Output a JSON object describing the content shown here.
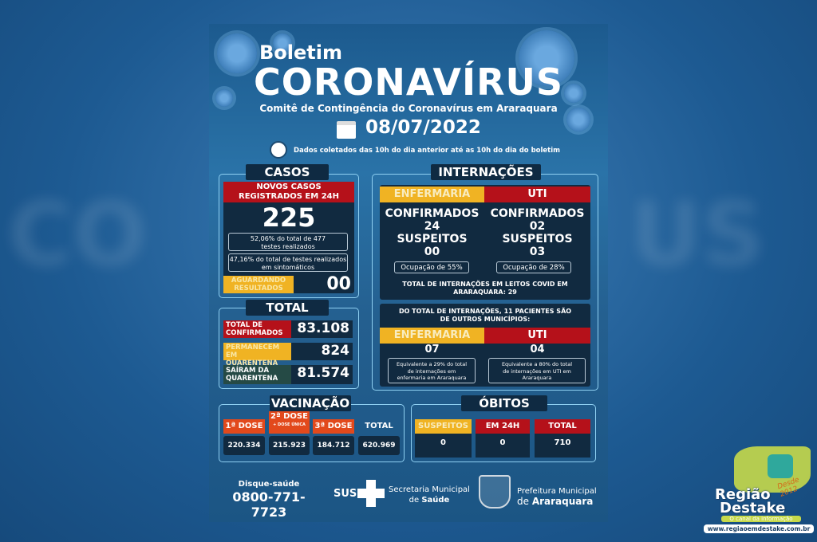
{
  "header": {
    "kicker": "Boletim",
    "title": "CORONAVÍRUS",
    "subtitle": "Comitê de Contingência do Coronavírus em Araraquara",
    "date": "08/07/2022",
    "note": "Dados coletados das 10h do dia anterior até as 10h do dia do boletim"
  },
  "casos": {
    "title": "CASOS",
    "new_label": "NOVOS CASOS REGISTRADOS EM 24H",
    "new_value": "225",
    "pct_tests": "52,06% do total de 477 testes realizados",
    "pct_symptomatic": "47,16% do total de testes realizados em sintomáticos",
    "pending_label": "AGUARDANDO RESULTADOS",
    "pending_value": "00"
  },
  "total": {
    "title": "TOTAL",
    "rows": [
      {
        "label": "TOTAL DE CONFIRMADOS",
        "value": "83.108"
      },
      {
        "label": "PERMANECEM EM QUARENTENA",
        "value": "824"
      },
      {
        "label": "SAÍRAM DA QUARENTENA",
        "value": "81.574"
      }
    ]
  },
  "internacoes": {
    "title": "INTERNAÇÕES",
    "enfermaria": {
      "label": "ENFERMARIA",
      "confirmed_label": "CONFIRMADOS",
      "confirmed": "24",
      "suspected_label": "SUSPEITOS",
      "suspected": "00",
      "occupancy": "Ocupação de 55%"
    },
    "uti": {
      "label": "UTI",
      "confirmed_label": "CONFIRMADOS",
      "confirmed": "02",
      "suspected_label": "SUSPEITOS",
      "suspected": "03",
      "occupancy": "Ocupação de 28%"
    },
    "total_note": "TOTAL DE INTERNAÇÕES EM LEITOS COVID EM ARARAQUARA: 29",
    "other_note": "DO TOTAL DE INTERNAÇÕES, 11 PACIENTES SÃO DE OUTROS MUNICÍPIOS:",
    "other_enfermaria": {
      "label": "ENFERMARIA",
      "value": "07",
      "note": "Equivalente a 29% do total de internações em enfermaria em Araraquara"
    },
    "other_uti": {
      "label": "UTI",
      "value": "04",
      "note": "Equivalente a 80% do total de internações em UTI em Araraquara"
    }
  },
  "vacinacao": {
    "title": "VACINAÇÃO",
    "doses": [
      {
        "label": "1ª DOSE",
        "value": "220.334"
      },
      {
        "label": "2ª DOSE",
        "sub": "+ DOSE ÚNICA",
        "value": "215.923"
      },
      {
        "label": "3ª DOSE",
        "value": "184.712"
      },
      {
        "label": "TOTAL",
        "value": "620.969"
      }
    ]
  },
  "obitos": {
    "title": "ÓBITOS",
    "cols": [
      {
        "label": "SUSPEITOS",
        "value": "0"
      },
      {
        "label": "EM 24H",
        "value": "0"
      },
      {
        "label": "TOTAL",
        "value": "710"
      }
    ]
  },
  "footer": {
    "phone_label": "Disque-saúde",
    "phone": "0800-771-7723",
    "sus": "SUS",
    "sec_line1": "Secretaria Municipal",
    "sec_line2_pre": "de ",
    "sec_line2": "Saúde",
    "pref_line1": "Prefeitura Municipal",
    "pref_line2_pre": "de ",
    "pref_line2": "Araraquara"
  },
  "watermark": {
    "name1": "Região",
    "name2": "Destake",
    "tagline": "O canal da informação",
    "since": "Desde 2012",
    "url": "www.regiaoemdestake.com.br"
  },
  "colors": {
    "red": "#b5111a",
    "yellow": "#f0b323",
    "orange": "#e2491c",
    "dark": "#112a40",
    "frame": "#8fd0f2"
  }
}
